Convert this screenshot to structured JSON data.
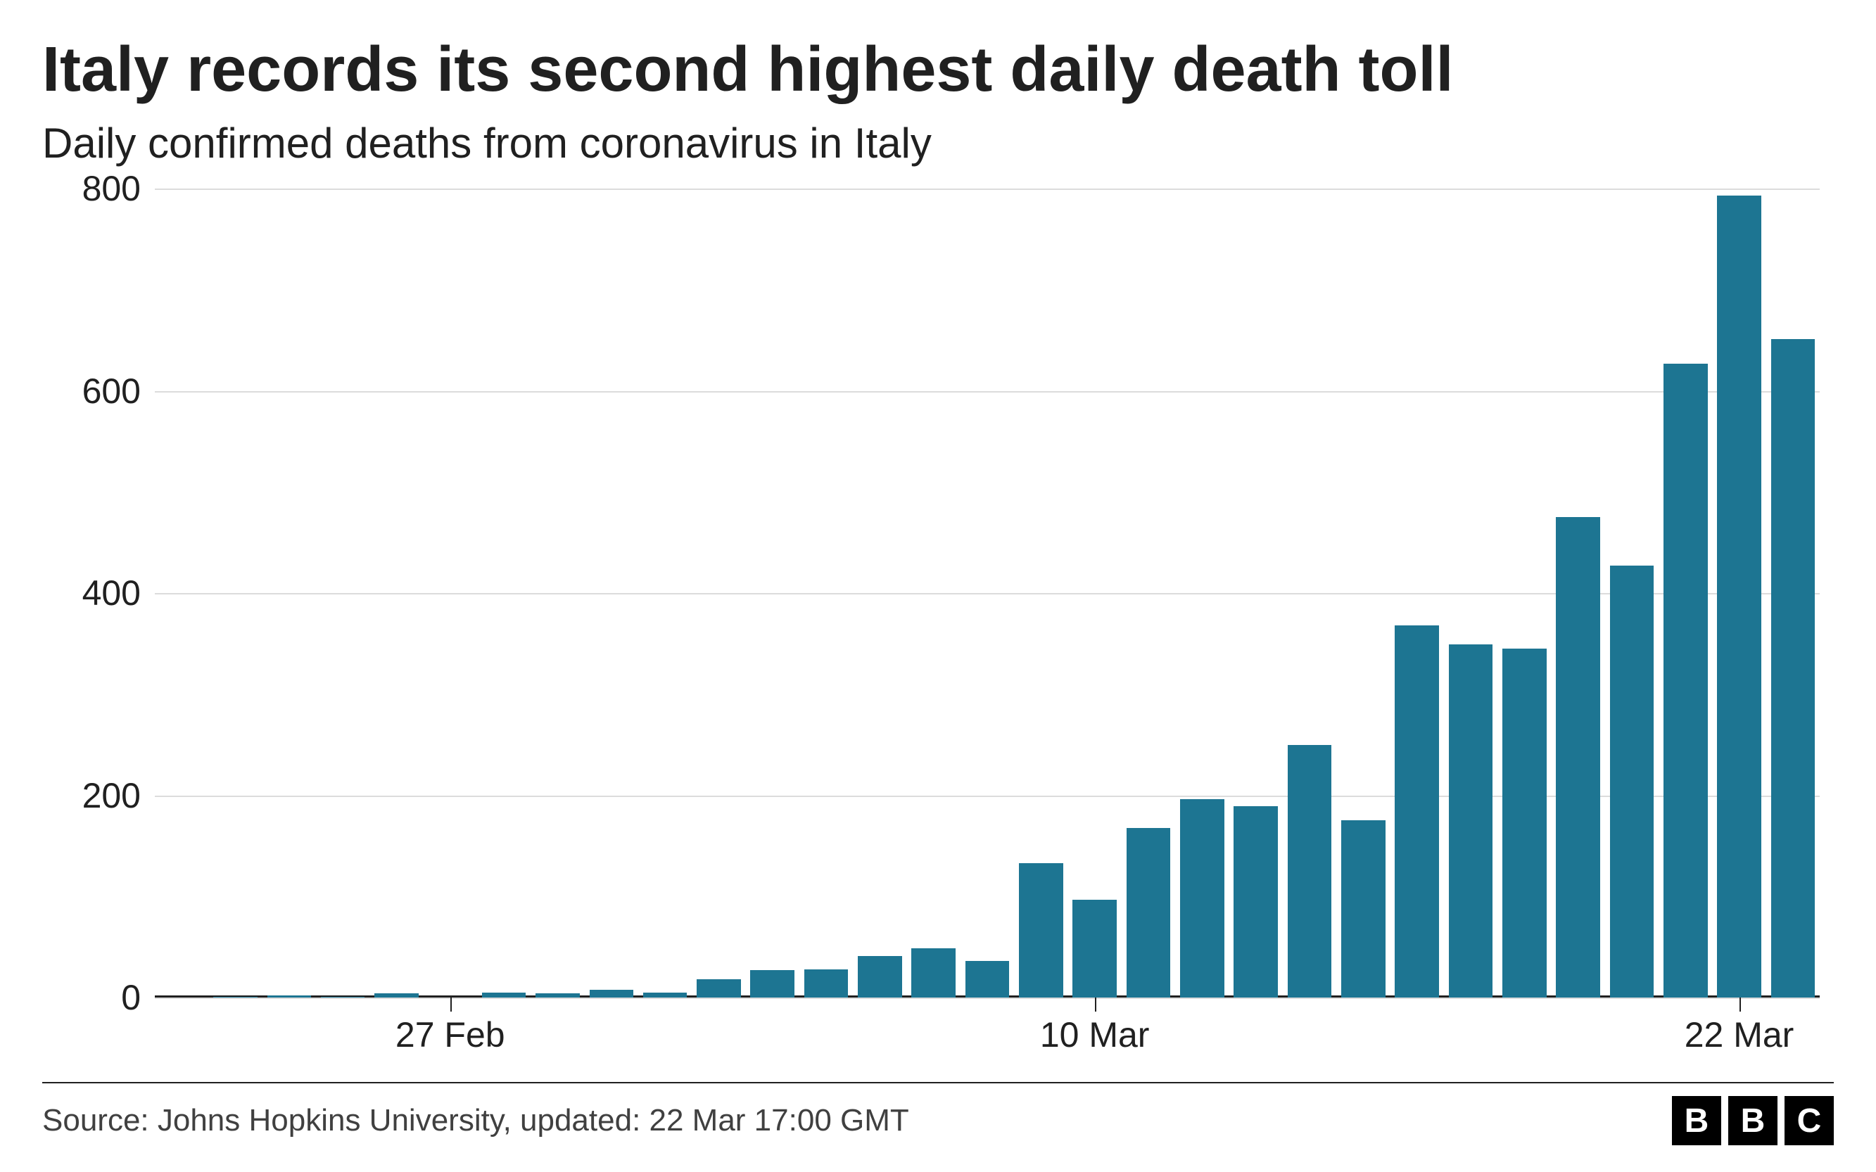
{
  "title": "Italy records its second highest daily death toll",
  "subtitle": "Daily confirmed deaths from coronavirus in Italy",
  "source_line": "Source: Johns Hopkins University, updated:  22 Mar 17:00 GMT",
  "logo_letters": [
    "B",
    "B",
    "C"
  ],
  "chart": {
    "type": "bar",
    "bar_color": "#1d7592",
    "background_color": "#ffffff",
    "grid_color": "#dcdcdc",
    "axis_color": "#202020",
    "title_fontsize_pt": 68,
    "subtitle_fontsize_pt": 45,
    "tick_fontsize_pt": 38,
    "ylim": [
      0,
      800
    ],
    "y_ticks": [
      0,
      200,
      400,
      600,
      800
    ],
    "bar_width_ratio": 0.82,
    "values": [
      0,
      1,
      2,
      1,
      4,
      0,
      5,
      4,
      8,
      5,
      18,
      27,
      28,
      41,
      49,
      36,
      133,
      97,
      168,
      196,
      189,
      250,
      175,
      368,
      349,
      345,
      475,
      427,
      627,
      793,
      651
    ],
    "n_bars": 31,
    "x_ticks": [
      {
        "index": 5,
        "label": "27 Feb"
      },
      {
        "index": 17,
        "label": "10 Mar"
      },
      {
        "index": 29,
        "label": "22 Mar"
      }
    ]
  }
}
